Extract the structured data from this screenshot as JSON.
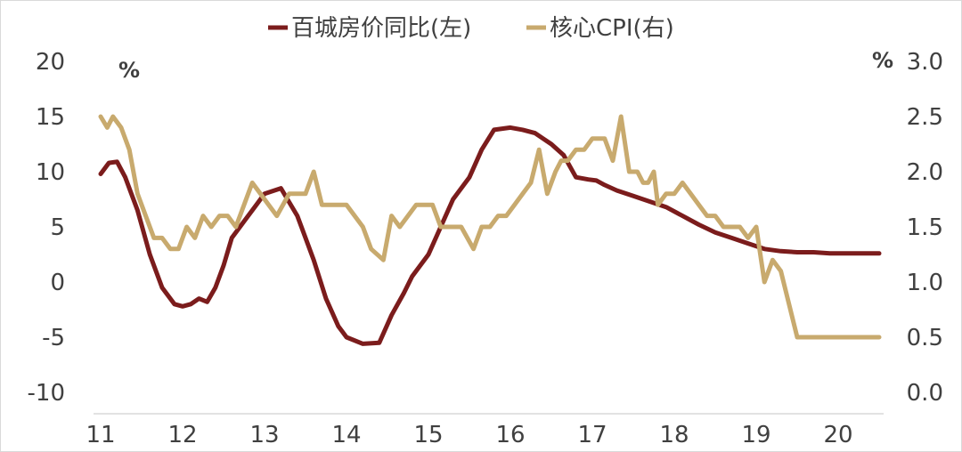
{
  "chart_data": {
    "type": "line",
    "x_ticks": [
      "11",
      "12",
      "13",
      "14",
      "15",
      "16",
      "17",
      "18",
      "19",
      "20"
    ],
    "y_left": {
      "unit": "%",
      "range": [
        -10,
        20
      ],
      "ticks": [
        "-10",
        "-5",
        "0",
        "5",
        "10",
        "15",
        "20"
      ]
    },
    "y_right": {
      "unit": "%",
      "range": [
        0.0,
        3.0
      ],
      "ticks": [
        "0.0",
        "0.5",
        "1.0",
        "1.5",
        "2.0",
        "2.5",
        "3.0"
      ]
    },
    "grid": false,
    "legend_position": "top",
    "series": [
      {
        "name": "百城房价同比(左)",
        "axis": "left",
        "color": "#7b1c1c",
        "x": [
          2011.0,
          2011.1,
          2011.2,
          2011.3,
          2011.45,
          2011.6,
          2011.75,
          2011.9,
          2012.0,
          2012.1,
          2012.2,
          2012.3,
          2012.4,
          2012.5,
          2012.6,
          2012.75,
          2012.9,
          2013.0,
          2013.2,
          2013.4,
          2013.6,
          2013.75,
          2013.9,
          2014.0,
          2014.2,
          2014.4,
          2014.55,
          2014.7,
          2014.8,
          2014.9,
          2015.0,
          2015.15,
          2015.3,
          2015.5,
          2015.65,
          2015.8,
          2016.0,
          2016.15,
          2016.3,
          2016.4,
          2016.5,
          2016.65,
          2016.8,
          2016.95,
          2017.05,
          2017.15,
          2017.3,
          2017.5,
          2017.7,
          2017.9,
          2018.1,
          2018.3,
          2018.5,
          2018.7,
          2018.9,
          2019.1,
          2019.3,
          2019.5,
          2019.7,
          2019.9,
          2020.1,
          2020.3,
          2020.5
        ],
        "values": [
          9.8,
          10.8,
          10.9,
          9.5,
          6.5,
          2.5,
          -0.5,
          -2.0,
          -2.2,
          -2.0,
          -1.5,
          -1.8,
          -0.5,
          1.5,
          4.0,
          5.5,
          7.0,
          8.0,
          8.5,
          6.0,
          2.0,
          -1.5,
          -4.0,
          -5.0,
          -5.6,
          -5.5,
          -3.0,
          -1.0,
          0.5,
          1.5,
          2.5,
          5.0,
          7.5,
          9.5,
          12.0,
          13.8,
          14.0,
          13.8,
          13.5,
          13.0,
          12.5,
          11.5,
          9.5,
          9.3,
          9.2,
          8.8,
          8.3,
          7.8,
          7.3,
          6.8,
          6.0,
          5.2,
          4.5,
          4.0,
          3.5,
          3.0,
          2.8,
          2.7,
          2.7,
          2.6,
          2.6,
          2.6,
          2.6
        ]
      },
      {
        "name": "核心CPI(右)",
        "axis": "right",
        "color": "#c8aa6e",
        "x": [
          2011.0,
          2011.08,
          2011.15,
          2011.25,
          2011.35,
          2011.45,
          2011.55,
          2011.65,
          2011.75,
          2011.85,
          2011.95,
          2012.05,
          2012.15,
          2012.25,
          2012.35,
          2012.45,
          2012.55,
          2012.65,
          2012.75,
          2012.85,
          2012.95,
          2013.05,
          2013.15,
          2013.3,
          2013.4,
          2013.5,
          2013.6,
          2013.7,
          2013.8,
          2013.9,
          2014.0,
          2014.1,
          2014.2,
          2014.3,
          2014.45,
          2014.55,
          2014.65,
          2014.75,
          2014.85,
          2014.95,
          2015.05,
          2015.15,
          2015.25,
          2015.4,
          2015.55,
          2015.65,
          2015.75,
          2015.85,
          2015.95,
          2016.05,
          2016.15,
          2016.25,
          2016.35,
          2016.45,
          2016.55,
          2016.62,
          2016.7,
          2016.8,
          2016.9,
          2017.0,
          2017.05,
          2017.15,
          2017.25,
          2017.35,
          2017.45,
          2017.55,
          2017.62,
          2017.68,
          2017.75,
          2017.8,
          2017.9,
          2018.0,
          2018.1,
          2018.2,
          2018.3,
          2018.4,
          2018.5,
          2018.6,
          2018.7,
          2018.8,
          2018.9,
          2019.0,
          2019.1,
          2019.2,
          2019.3,
          2019.4,
          2019.5,
          2019.6,
          2019.68,
          2019.75,
          2019.82,
          2019.9,
          2020.0,
          2020.1,
          2020.2,
          2020.3,
          2020.4,
          2020.5
        ],
        "values": [
          2.5,
          2.4,
          2.5,
          2.4,
          2.2,
          1.8,
          1.6,
          1.4,
          1.4,
          1.3,
          1.3,
          1.5,
          1.4,
          1.6,
          1.5,
          1.6,
          1.6,
          1.5,
          1.7,
          1.9,
          1.8,
          1.7,
          1.6,
          1.8,
          1.8,
          1.8,
          2.0,
          1.7,
          1.7,
          1.7,
          1.7,
          1.6,
          1.5,
          1.3,
          1.2,
          1.6,
          1.5,
          1.6,
          1.7,
          1.7,
          1.7,
          1.5,
          1.5,
          1.5,
          1.3,
          1.5,
          1.5,
          1.6,
          1.6,
          1.7,
          1.8,
          1.9,
          2.2,
          1.8,
          2.0,
          2.1,
          2.1,
          2.2,
          2.2,
          2.3,
          2.3,
          2.3,
          2.1,
          2.5,
          2.0,
          2.0,
          1.9,
          1.9,
          2.0,
          1.7,
          1.8,
          1.8,
          1.9,
          1.8,
          1.7,
          1.6,
          1.6,
          1.5,
          1.5,
          1.5,
          1.4,
          1.5,
          1.0,
          1.2,
          1.1,
          0.8,
          0.5,
          0.5,
          0.5,
          0.5,
          0.5,
          0.5,
          0.5,
          0.5,
          0.5,
          0.5,
          0.5,
          0.5
        ]
      }
    ]
  }
}
